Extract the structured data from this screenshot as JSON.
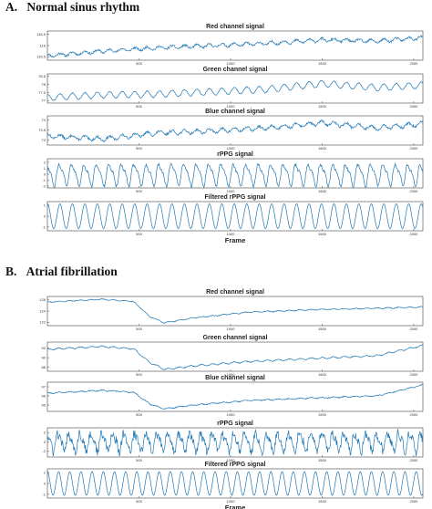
{
  "colors": {
    "signal": "#1f77b4"
  },
  "sections": [
    {
      "letter": "A.",
      "title": "Normal sinus rhythm"
    },
    {
      "letter": "B.",
      "title": "Atrial fibrillation"
    }
  ],
  "chart_data": [
    {
      "panel": "A",
      "type": "line",
      "title": "Red channel signal",
      "xlabel": "",
      "x_range": [
        0,
        2050
      ],
      "xticks": [
        500,
        1000,
        1500,
        2000
      ],
      "yticks": [
        116.5,
        116,
        115.5
      ],
      "ylim": [
        115.35,
        116.65
      ],
      "series": [
        {
          "trend": [
            [
              0,
              115.55
            ],
            [
              300,
              115.75
            ],
            [
              600,
              115.9
            ],
            [
              900,
              116.0
            ],
            [
              1200,
              116.1
            ],
            [
              1500,
              116.25
            ],
            [
              1800,
              116.2
            ],
            [
              2050,
              116.35
            ]
          ],
          "kind": "raw",
          "period": 68,
          "amp": 0.07,
          "noise": 0.05,
          "seed": 11
        }
      ]
    },
    {
      "panel": "A",
      "type": "line",
      "title": "Green channel signal",
      "xlabel": "",
      "x_range": [
        0,
        2050
      ],
      "xticks": [
        500,
        1000,
        1500,
        2000
      ],
      "yticks": [
        78.5,
        78,
        77.5,
        77
      ],
      "ylim": [
        76.85,
        78.65
      ],
      "series": [
        {
          "trend": [
            [
              0,
              77.2
            ],
            [
              300,
              77.35
            ],
            [
              600,
              77.4
            ],
            [
              900,
              77.55
            ],
            [
              1200,
              77.7
            ],
            [
              1500,
              78.05
            ],
            [
              1800,
              77.8
            ],
            [
              2050,
              77.95
            ]
          ],
          "kind": "raw",
          "period": 68,
          "amp": 0.2,
          "noise": 0.03,
          "seed": 12
        }
      ]
    },
    {
      "panel": "A",
      "type": "line",
      "title": "Blue channel signal",
      "xlabel": "",
      "x_range": [
        0,
        2050
      ],
      "xticks": [
        500,
        1000,
        1500,
        2000
      ],
      "yticks": [
        74,
        73.5,
        73
      ],
      "ylim": [
        72.75,
        74.2
      ],
      "series": [
        {
          "trend": [
            [
              0,
              73.2
            ],
            [
              300,
              73.05
            ],
            [
              600,
              73.35
            ],
            [
              900,
              73.45
            ],
            [
              1200,
              73.6
            ],
            [
              1500,
              73.85
            ],
            [
              1800,
              73.6
            ],
            [
              2050,
              73.8
            ]
          ],
          "kind": "raw",
          "period": 68,
          "amp": 0.1,
          "noise": 0.06,
          "seed": 13
        }
      ]
    },
    {
      "panel": "A",
      "type": "line",
      "title": "rPPG signal",
      "xlabel": "",
      "x_range": [
        0,
        2050
      ],
      "xticks": [
        500,
        1000,
        1500,
        2000
      ],
      "yticks": [
        2,
        1,
        0,
        -1,
        -2
      ],
      "ylim": [
        -2.3,
        2.6
      ],
      "series": [
        {
          "trend": [
            [
              0,
              0
            ],
            [
              2050,
              0
            ]
          ],
          "kind": "pulse",
          "period": 68,
          "amp": 1.6,
          "noise": 0.25,
          "seed": 14
        }
      ]
    },
    {
      "panel": "A",
      "type": "line",
      "title": "Filtered rPPG signal",
      "xlabel": "Frame",
      "x_range": [
        0,
        2050
      ],
      "xticks": [
        500,
        1000,
        1500,
        2000
      ],
      "yticks": [
        1,
        0,
        -1
      ],
      "ylim": [
        -1.35,
        1.35
      ],
      "series": [
        {
          "trend": [
            [
              0,
              0
            ],
            [
              2050,
              0
            ]
          ],
          "kind": "sine",
          "period": 68,
          "amp": 1.15,
          "noise": 0,
          "seed": 15
        }
      ]
    },
    {
      "panel": "B",
      "type": "line",
      "title": "Red channel signal",
      "xlabel": "",
      "x_range": [
        0,
        2050
      ],
      "xticks": [
        500,
        1000,
        1500,
        2000
      ],
      "yticks": [
        126,
        124,
        122
      ],
      "ylim": [
        121.4,
        126.6
      ],
      "series": [
        {
          "trend": [
            [
              0,
              125.6
            ],
            [
              300,
              126.1
            ],
            [
              470,
              125.7
            ],
            [
              560,
              123.0
            ],
            [
              640,
              121.9
            ],
            [
              800,
              122.8
            ],
            [
              1100,
              123.8
            ],
            [
              1500,
              124.3
            ],
            [
              1800,
              124.5
            ],
            [
              2050,
              124.7
            ]
          ],
          "kind": "raw",
          "period": 60,
          "amp": 0.08,
          "noise": 0.07,
          "seed": 21
        }
      ]
    },
    {
      "panel": "B",
      "type": "line",
      "title": "Green channel signal",
      "xlabel": "",
      "x_range": [
        0,
        2050
      ],
      "xticks": [
        500,
        1000,
        1500,
        2000
      ],
      "yticks": [
        92,
        90,
        88
      ],
      "ylim": [
        87.2,
        93.2
      ],
      "series": [
        {
          "trend": [
            [
              0,
              91.7
            ],
            [
              300,
              92.3
            ],
            [
              470,
              91.8
            ],
            [
              560,
              89.0
            ],
            [
              640,
              87.6
            ],
            [
              800,
              88.3
            ],
            [
              1100,
              89.2
            ],
            [
              1500,
              89.9
            ],
            [
              1800,
              90.4
            ],
            [
              2050,
              92.5
            ]
          ],
          "kind": "raw",
          "period": 60,
          "amp": 0.15,
          "noise": 0.08,
          "seed": 22
        }
      ]
    },
    {
      "panel": "B",
      "type": "line",
      "title": "Blue channel signal",
      "xlabel": "",
      "x_range": [
        0,
        2050
      ],
      "xticks": [
        500,
        1000,
        1500,
        2000
      ],
      "yticks": [
        97,
        96,
        95
      ],
      "ylim": [
        94.3,
        97.5
      ],
      "series": [
        {
          "trend": [
            [
              0,
              96.3
            ],
            [
              300,
              96.6
            ],
            [
              470,
              96.4
            ],
            [
              560,
              95.1
            ],
            [
              640,
              94.6
            ],
            [
              800,
              95.0
            ],
            [
              1100,
              95.5
            ],
            [
              1500,
              95.8
            ],
            [
              1800,
              96.0
            ],
            [
              2050,
              97.2
            ]
          ],
          "kind": "raw",
          "period": 60,
          "amp": 0.05,
          "noise": 0.05,
          "seed": 23
        }
      ]
    },
    {
      "panel": "B",
      "type": "line",
      "title": "rPPG signal",
      "xlabel": "",
      "x_range": [
        0,
        2050
      ],
      "xticks": [
        500,
        1000,
        1500,
        2000
      ],
      "yticks": [
        2,
        0,
        -2
      ],
      "ylim": [
        -3.2,
        3.0
      ],
      "series": [
        {
          "trend": [
            [
              0,
              0
            ],
            [
              2050,
              0
            ]
          ],
          "kind": "pulse",
          "period": 60,
          "amp": 1.7,
          "noise": 0.9,
          "seed": 24
        }
      ]
    },
    {
      "panel": "B",
      "type": "line",
      "title": "Filtered rPPG signal",
      "xlabel": "Frame",
      "x_range": [
        0,
        2050
      ],
      "xticks": [
        500,
        1000,
        1500,
        2000
      ],
      "yticks": [
        1,
        0,
        -1
      ],
      "ylim": [
        -1.35,
        1.35
      ],
      "series": [
        {
          "trend": [
            [
              0,
              0
            ],
            [
              2050,
              0
            ]
          ],
          "kind": "sine",
          "period": 61,
          "amp": 1.1,
          "noise": 0,
          "seed": 25
        }
      ]
    }
  ]
}
